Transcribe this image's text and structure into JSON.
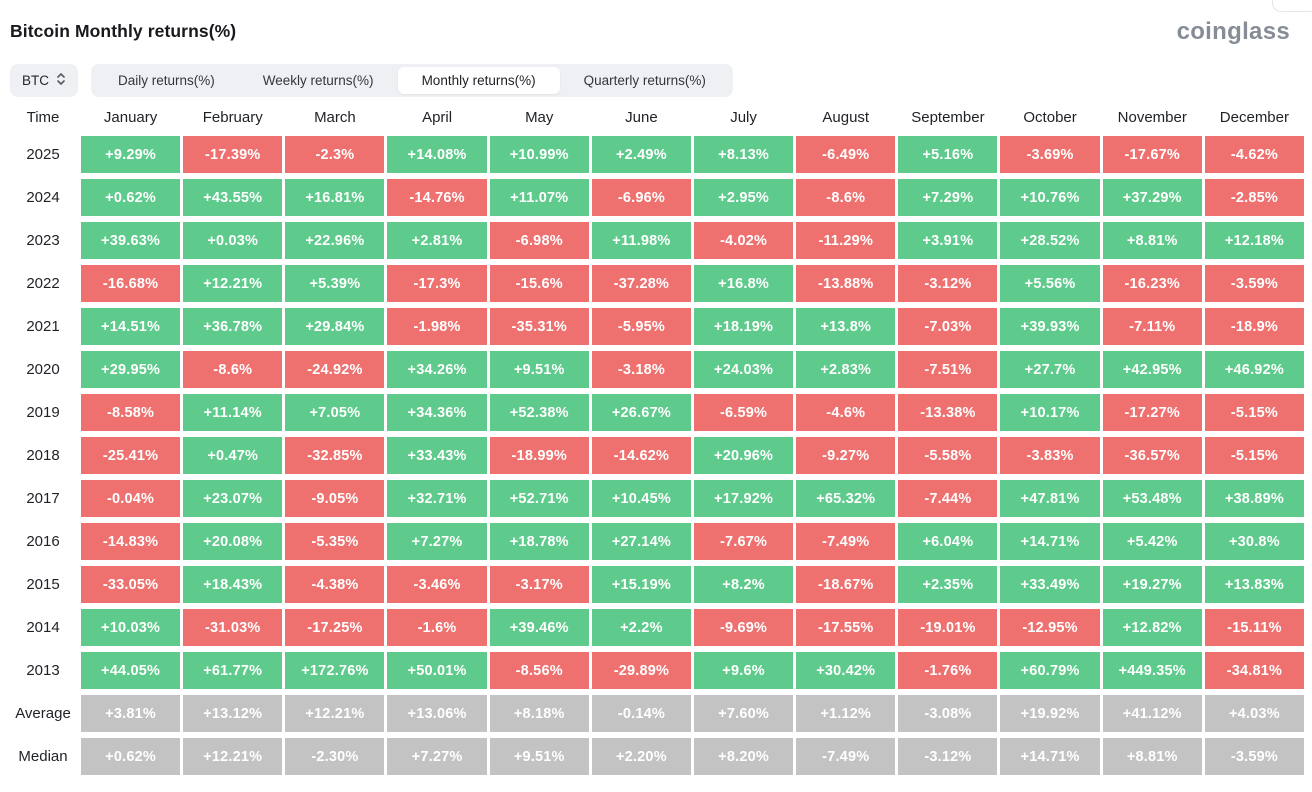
{
  "header": {
    "title": "Bitcoin Monthly returns(%)",
    "logo": "coinglass"
  },
  "toolbar": {
    "symbol": "BTC",
    "symbol_selector_icon": "updown-chevron-icon",
    "tabs": [
      {
        "id": "daily",
        "label": "Daily returns(%)",
        "active": false
      },
      {
        "id": "weekly",
        "label": "Weekly returns(%)",
        "active": false
      },
      {
        "id": "monthly",
        "label": "Monthly returns(%)",
        "active": true
      },
      {
        "id": "quarterly",
        "label": "Quarterly returns(%)",
        "active": false
      }
    ]
  },
  "colors": {
    "positive": "#5ecb8c",
    "negative": "#ee7170",
    "summary": "#c3c3c3"
  },
  "table": {
    "time_header": "Time",
    "months": [
      "January",
      "February",
      "March",
      "April",
      "May",
      "June",
      "July",
      "August",
      "September",
      "October",
      "November",
      "December"
    ],
    "rows": [
      {
        "label": "2025",
        "type": "year",
        "values": [
          "+9.29%",
          "-17.39%",
          "-2.3%",
          "+14.08%",
          "+10.99%",
          "+2.49%",
          "+8.13%",
          "-6.49%",
          "+5.16%",
          "-3.69%",
          "-17.67%",
          "-4.62%"
        ]
      },
      {
        "label": "2024",
        "type": "year",
        "values": [
          "+0.62%",
          "+43.55%",
          "+16.81%",
          "-14.76%",
          "+11.07%",
          "-6.96%",
          "+2.95%",
          "-8.6%",
          "+7.29%",
          "+10.76%",
          "+37.29%",
          "-2.85%"
        ]
      },
      {
        "label": "2023",
        "type": "year",
        "values": [
          "+39.63%",
          "+0.03%",
          "+22.96%",
          "+2.81%",
          "-6.98%",
          "+11.98%",
          "-4.02%",
          "-11.29%",
          "+3.91%",
          "+28.52%",
          "+8.81%",
          "+12.18%"
        ]
      },
      {
        "label": "2022",
        "type": "year",
        "values": [
          "-16.68%",
          "+12.21%",
          "+5.39%",
          "-17.3%",
          "-15.6%",
          "-37.28%",
          "+16.8%",
          "-13.88%",
          "-3.12%",
          "+5.56%",
          "-16.23%",
          "-3.59%"
        ]
      },
      {
        "label": "2021",
        "type": "year",
        "values": [
          "+14.51%",
          "+36.78%",
          "+29.84%",
          "-1.98%",
          "-35.31%",
          "-5.95%",
          "+18.19%",
          "+13.8%",
          "-7.03%",
          "+39.93%",
          "-7.11%",
          "-18.9%"
        ]
      },
      {
        "label": "2020",
        "type": "year",
        "values": [
          "+29.95%",
          "-8.6%",
          "-24.92%",
          "+34.26%",
          "+9.51%",
          "-3.18%",
          "+24.03%",
          "+2.83%",
          "-7.51%",
          "+27.7%",
          "+42.95%",
          "+46.92%"
        ]
      },
      {
        "label": "2019",
        "type": "year",
        "values": [
          "-8.58%",
          "+11.14%",
          "+7.05%",
          "+34.36%",
          "+52.38%",
          "+26.67%",
          "-6.59%",
          "-4.6%",
          "-13.38%",
          "+10.17%",
          "-17.27%",
          "-5.15%"
        ]
      },
      {
        "label": "2018",
        "type": "year",
        "values": [
          "-25.41%",
          "+0.47%",
          "-32.85%",
          "+33.43%",
          "-18.99%",
          "-14.62%",
          "+20.96%",
          "-9.27%",
          "-5.58%",
          "-3.83%",
          "-36.57%",
          "-5.15%"
        ]
      },
      {
        "label": "2017",
        "type": "year",
        "values": [
          "-0.04%",
          "+23.07%",
          "-9.05%",
          "+32.71%",
          "+52.71%",
          "+10.45%",
          "+17.92%",
          "+65.32%",
          "-7.44%",
          "+47.81%",
          "+53.48%",
          "+38.89%"
        ]
      },
      {
        "label": "2016",
        "type": "year",
        "values": [
          "-14.83%",
          "+20.08%",
          "-5.35%",
          "+7.27%",
          "+18.78%",
          "+27.14%",
          "-7.67%",
          "-7.49%",
          "+6.04%",
          "+14.71%",
          "+5.42%",
          "+30.8%"
        ]
      },
      {
        "label": "2015",
        "type": "year",
        "values": [
          "-33.05%",
          "+18.43%",
          "-4.38%",
          "-3.46%",
          "-3.17%",
          "+15.19%",
          "+8.2%",
          "-18.67%",
          "+2.35%",
          "+33.49%",
          "+19.27%",
          "+13.83%"
        ]
      },
      {
        "label": "2014",
        "type": "year",
        "values": [
          "+10.03%",
          "-31.03%",
          "-17.25%",
          "-1.6%",
          "+39.46%",
          "+2.2%",
          "-9.69%",
          "-17.55%",
          "-19.01%",
          "-12.95%",
          "+12.82%",
          "-15.11%"
        ]
      },
      {
        "label": "2013",
        "type": "year",
        "values": [
          "+44.05%",
          "+61.77%",
          "+172.76%",
          "+50.01%",
          "-8.56%",
          "-29.89%",
          "+9.6%",
          "+30.42%",
          "-1.76%",
          "+60.79%",
          "+449.35%",
          "-34.81%"
        ]
      },
      {
        "label": "Average",
        "type": "summary",
        "values": [
          "+3.81%",
          "+13.12%",
          "+12.21%",
          "+13.06%",
          "+8.18%",
          "-0.14%",
          "+7.60%",
          "+1.12%",
          "-3.08%",
          "+19.92%",
          "+41.12%",
          "+4.03%"
        ]
      },
      {
        "label": "Median",
        "type": "summary",
        "values": [
          "+0.62%",
          "+12.21%",
          "-2.30%",
          "+7.27%",
          "+9.51%",
          "+2.20%",
          "+8.20%",
          "-7.49%",
          "-3.12%",
          "+14.71%",
          "+8.81%",
          "-3.59%"
        ]
      }
    ]
  }
}
